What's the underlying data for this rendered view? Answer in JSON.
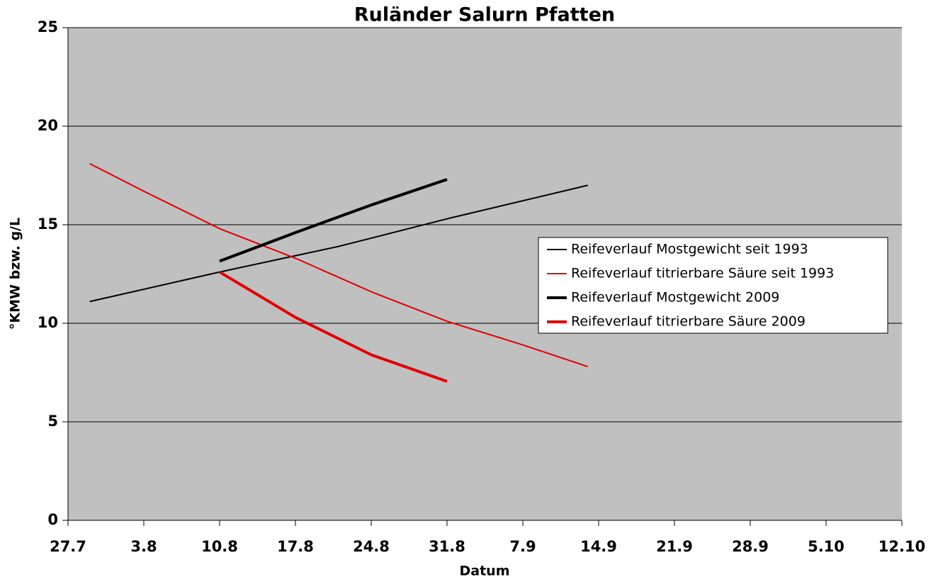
{
  "chart_data": {
    "type": "line",
    "title": "Ruländer Salurn Pfatten",
    "x_label": "Datum",
    "y_label": "°KMW bzw. g/L",
    "xlim": [
      208,
      285
    ],
    "xticks": [
      {
        "value": 208,
        "label": "27.7"
      },
      {
        "value": 215,
        "label": "3.8"
      },
      {
        "value": 222,
        "label": "10.8"
      },
      {
        "value": 229,
        "label": "17.8"
      },
      {
        "value": 236,
        "label": "24.8"
      },
      {
        "value": 243,
        "label": "31.8"
      },
      {
        "value": 250,
        "label": "7.9"
      },
      {
        "value": 257,
        "label": "14.9"
      },
      {
        "value": 264,
        "label": "21.9"
      },
      {
        "value": 271,
        "label": "28.9"
      },
      {
        "value": 278,
        "label": "5.10"
      },
      {
        "value": 285,
        "label": "12.10"
      }
    ],
    "ylim": [
      0,
      25
    ],
    "yticks": [
      0,
      5,
      10,
      15,
      20,
      25
    ],
    "grid": true,
    "plot_background": "#c0c0c0",
    "legend": "right",
    "series": [
      {
        "name": "Reifeverlauf Mostgewicht seit 1993",
        "color": "#000000",
        "line_width": 2,
        "x": [
          210,
          222,
          233,
          243,
          256
        ],
        "values": [
          11.1,
          12.6,
          13.9,
          15.3,
          17.0
        ]
      },
      {
        "name": "Reifeverlauf titrierbare Säure seit 1993",
        "color": "#e00000",
        "line_width": 2,
        "x": [
          210,
          215,
          222,
          229,
          236,
          243,
          250,
          256
        ],
        "values": [
          18.1,
          16.7,
          14.8,
          13.3,
          11.6,
          10.1,
          8.9,
          7.8
        ]
      },
      {
        "name": "Reifeverlauf Mostgewicht 2009",
        "color": "#000000",
        "line_width": 4,
        "x": [
          222,
          229,
          236,
          243
        ],
        "values": [
          13.15,
          14.6,
          16.0,
          17.3
        ]
      },
      {
        "name": "Reifeverlauf titrierbare Säure 2009",
        "color": "#e00000",
        "line_width": 4,
        "x": [
          222,
          229,
          236,
          243
        ],
        "values": [
          12.6,
          10.3,
          8.4,
          7.05
        ]
      }
    ]
  }
}
